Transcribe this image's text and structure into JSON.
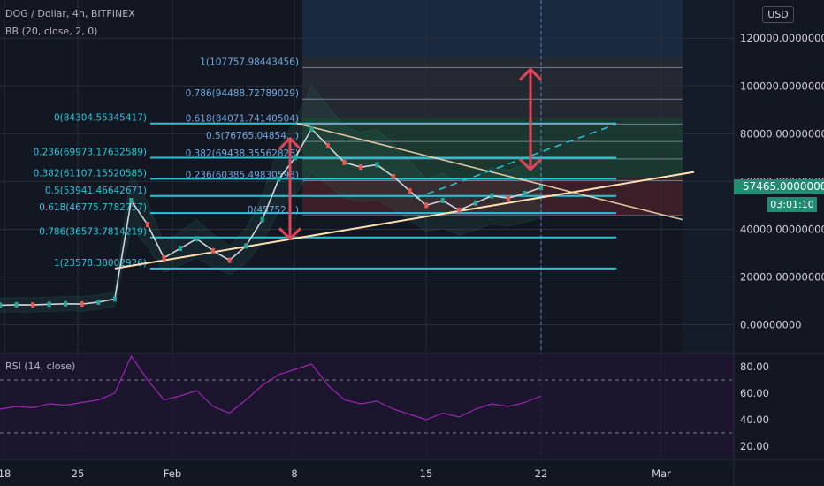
{
  "legend": {
    "symbol_line": "DOG / Dollar, 4h, BITFINEX",
    "bb_line": "BB (20, close, 2, 0)",
    "rsi_line": "RSI (14, close)"
  },
  "currency": "USD",
  "current_price_label": "57465.00000000",
  "countdown": "03:01:10",
  "colors": {
    "background": "#131722",
    "fib_line": "#26c6da",
    "trendline": "#ffe0b2",
    "arrow": "#e0465a",
    "price_tag": "#1f8f73",
    "rsi_line": "#9c27b0"
  },
  "chart_data": [
    {
      "type": "line",
      "title": "DOG / Dollar, 4h, BITFINEX",
      "y_tick_labels": [
        "120000.00000000",
        "100000.00000000",
        "80000.00000000",
        "60000.00000000",
        "40000.00000000",
        "20000.00000000",
        "0.00000000"
      ],
      "y_ticks": [
        120000,
        100000,
        80000,
        60000,
        40000,
        20000,
        0
      ],
      "ylim": [
        -12000,
        136000
      ],
      "x_tick_labels": [
        "18",
        "25",
        "Feb",
        "8",
        "15",
        "22",
        "Mar"
      ],
      "grid": true,
      "current_price": 57465,
      "fib_levels_left": [
        {
          "label": "0.786(36573.7814219)",
          "value": 36573.78
        },
        {
          "label": "0.618(46775.7782757)",
          "value": 46775.78
        },
        {
          "label": "0.5(53941.46642671)",
          "value": 53941.47
        },
        {
          "label": "0.382(61107.15520585)",
          "value": 61107.16
        },
        {
          "label": "0.236(69973.17632589)",
          "value": 69973.18
        },
        {
          "label": "0(84304.55345417)",
          "value": 84304.55
        },
        {
          "label": "1(23578.38002926)",
          "value": 23578.38
        }
      ],
      "fib_levels_right": [
        {
          "label": "1(107757.98443456)",
          "value": 107757.98
        },
        {
          "label": "0.786(94488.72789029)",
          "value": 94488.73
        },
        {
          "label": "0.618(84071.74140504)",
          "value": 84071.74
        },
        {
          "label": "0.5(76765.04854...)",
          "value": 76765.05
        },
        {
          "label": "0.382(69438.35562826)",
          "value": 69438.36
        },
        {
          "label": "0.236(60385.49830593)",
          "value": 60385.5
        },
        {
          "label": "0(45752...)",
          "value": 45752
        }
      ],
      "series": [
        {
          "name": "DOG / Dollar",
          "x": [
            "Jan 14",
            "Jan 16",
            "Jan 18",
            "Jan 20",
            "Jan 22",
            "Jan 24",
            "Jan 26",
            "Jan 27",
            "Jan 28",
            "Jan 29",
            "Jan 30",
            "Jan 31",
            "Feb 1",
            "Feb 2",
            "Feb 3",
            "Feb 4",
            "Feb 5",
            "Feb 6",
            "Feb 7",
            "Feb 8",
            "Feb 9",
            "Feb 10",
            "Feb 11",
            "Feb 12",
            "Feb 13",
            "Feb 14",
            "Feb 15",
            "Feb 16",
            "Feb 17",
            "Feb 18",
            "Feb 19",
            "Feb 20",
            "Feb 21",
            "Feb 22"
          ],
          "values": [
            8200,
            8400,
            8300,
            8600,
            8800,
            8700,
            9500,
            10800,
            52000,
            42000,
            28000,
            32000,
            36000,
            31000,
            27000,
            33000,
            44000,
            61000,
            70000,
            82000,
            75000,
            68000,
            66000,
            67000,
            62000,
            56000,
            50000,
            52000,
            48000,
            51000,
            54000,
            53000,
            55000,
            57465
          ]
        }
      ],
      "rsi": {
        "name": "RSI (14, close)",
        "y_tick_labels": [
          "80.00",
          "60.00",
          "40.00",
          "20.00"
        ],
        "y_ticks": [
          80,
          60,
          40,
          20
        ],
        "ylim": [
          10,
          90
        ],
        "bands": [
          70,
          30
        ],
        "values": [
          48,
          50,
          49,
          52,
          51,
          53,
          55,
          60,
          88,
          70,
          55,
          58,
          62,
          50,
          45,
          55,
          66,
          74,
          78,
          82,
          66,
          55,
          52,
          54,
          48,
          44,
          40,
          45,
          42,
          48,
          52,
          50,
          53,
          58
        ]
      }
    }
  ]
}
